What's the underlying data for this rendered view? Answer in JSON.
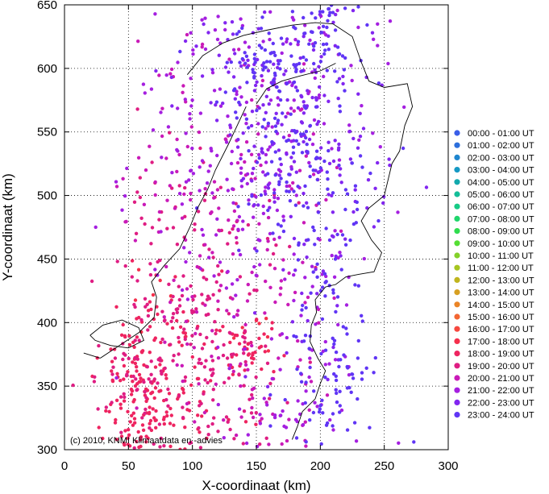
{
  "chart_data": {
    "type": "scatter",
    "title": "",
    "xlabel": "X-coordinaat (km)",
    "ylabel": "Y-coordinaat (km)",
    "xlim": [
      0,
      300
    ],
    "ylim": [
      300,
      650
    ],
    "xticks": [
      0,
      50,
      100,
      150,
      200,
      250,
      300
    ],
    "yticks": [
      300,
      350,
      400,
      450,
      500,
      550,
      600,
      650
    ],
    "grid": true,
    "legend_position": "right",
    "credit": "(c) 2010, KNMI Klimaatdata en -advies",
    "basemap": "Netherlands coastline and border outline",
    "point_density_note": "thousands of individual lightning discharges; clusters approximated",
    "series": [
      {
        "name": "00:00 - 01:00 UT",
        "color": "#3a5ee8",
        "clusters": []
      },
      {
        "name": "01:00 - 02:00 UT",
        "color": "#2c6fdc",
        "clusters": []
      },
      {
        "name": "02:00 - 03:00 UT",
        "color": "#1f86cf",
        "clusters": []
      },
      {
        "name": "03:00 - 04:00 UT",
        "color": "#1599c4",
        "clusters": []
      },
      {
        "name": "04:00 - 05:00 UT",
        "color": "#12a9ad",
        "clusters": []
      },
      {
        "name": "05:00 - 06:00 UT",
        "color": "#14be99",
        "clusters": []
      },
      {
        "name": "06:00 - 07:00 UT",
        "color": "#17cb86",
        "clusters": []
      },
      {
        "name": "07:00 - 08:00 UT",
        "color": "#20d66c",
        "clusters": []
      },
      {
        "name": "08:00 - 09:00 UT",
        "color": "#2fdc4e",
        "clusters": []
      },
      {
        "name": "09:00 - 10:00 UT",
        "color": "#55de34",
        "clusters": []
      },
      {
        "name": "10:00 - 11:00 UT",
        "color": "#84d12a",
        "clusters": []
      },
      {
        "name": "11:00 - 12:00 UT",
        "color": "#a6c620",
        "clusters": []
      },
      {
        "name": "12:00 - 13:00 UT",
        "color": "#c0b51e",
        "clusters": []
      },
      {
        "name": "13:00 - 14:00 UT",
        "color": "#d7a022",
        "clusters": []
      },
      {
        "name": "14:00 - 15:00 UT",
        "color": "#ea8426",
        "clusters": []
      },
      {
        "name": "15:00 - 16:00 UT",
        "color": "#f36633",
        "clusters": []
      },
      {
        "name": "16:00 - 17:00 UT",
        "color": "#f6483f",
        "clusters": []
      },
      {
        "name": "17:00 - 18:00 UT",
        "color": "#f52f4c",
        "clusters": [
          [
            75,
            410,
            14,
            20,
            10
          ],
          [
            145,
            395,
            8,
            10,
            8
          ]
        ]
      },
      {
        "name": "18:00 - 19:00 UT",
        "color": "#ee2460",
        "clusters": [
          [
            55,
            360,
            14,
            30,
            90
          ],
          [
            70,
            320,
            22,
            12,
            60
          ],
          [
            90,
            370,
            25,
            30,
            50
          ],
          [
            140,
            385,
            12,
            15,
            40
          ]
        ]
      },
      {
        "name": "19:00 - 20:00 UT",
        "color": "#df1d83",
        "clusters": [
          [
            95,
            400,
            35,
            60,
            130
          ],
          [
            65,
            340,
            25,
            25,
            50
          ],
          [
            130,
            360,
            22,
            40,
            50
          ],
          [
            110,
            455,
            30,
            40,
            50
          ]
        ]
      },
      {
        "name": "20:00 - 21:00 UT",
        "color": "#c91ab8",
        "clusters": [
          [
            115,
            450,
            40,
            90,
            120
          ],
          [
            175,
            360,
            22,
            40,
            40
          ],
          [
            165,
            500,
            35,
            60,
            40
          ],
          [
            95,
            590,
            20,
            35,
            20
          ]
        ]
      },
      {
        "name": "21:00 - 22:00 UT",
        "color": "#a51fe0",
        "clusters": [
          [
            150,
            560,
            35,
            70,
            140
          ],
          [
            110,
            510,
            30,
            45,
            60
          ],
          [
            190,
            440,
            25,
            80,
            50
          ],
          [
            170,
            340,
            25,
            30,
            40
          ],
          [
            215,
            600,
            30,
            40,
            30
          ]
        ]
      },
      {
        "name": "22:00 - 23:00 UT",
        "color": "#8226f0",
        "clusters": [
          [
            165,
            590,
            35,
            40,
            110
          ],
          [
            200,
            540,
            30,
            50,
            70
          ],
          [
            180,
            470,
            22,
            60,
            50
          ]
        ]
      },
      {
        "name": "23:00 - 24:00 UT",
        "color": "#6035f5",
        "clusters": [
          [
            185,
            530,
            30,
            50,
            130
          ],
          [
            210,
            380,
            15,
            50,
            80
          ],
          [
            200,
            625,
            15,
            20,
            60
          ],
          [
            150,
            600,
            15,
            25,
            50
          ],
          [
            205,
            330,
            20,
            25,
            30
          ]
        ]
      }
    ]
  }
}
